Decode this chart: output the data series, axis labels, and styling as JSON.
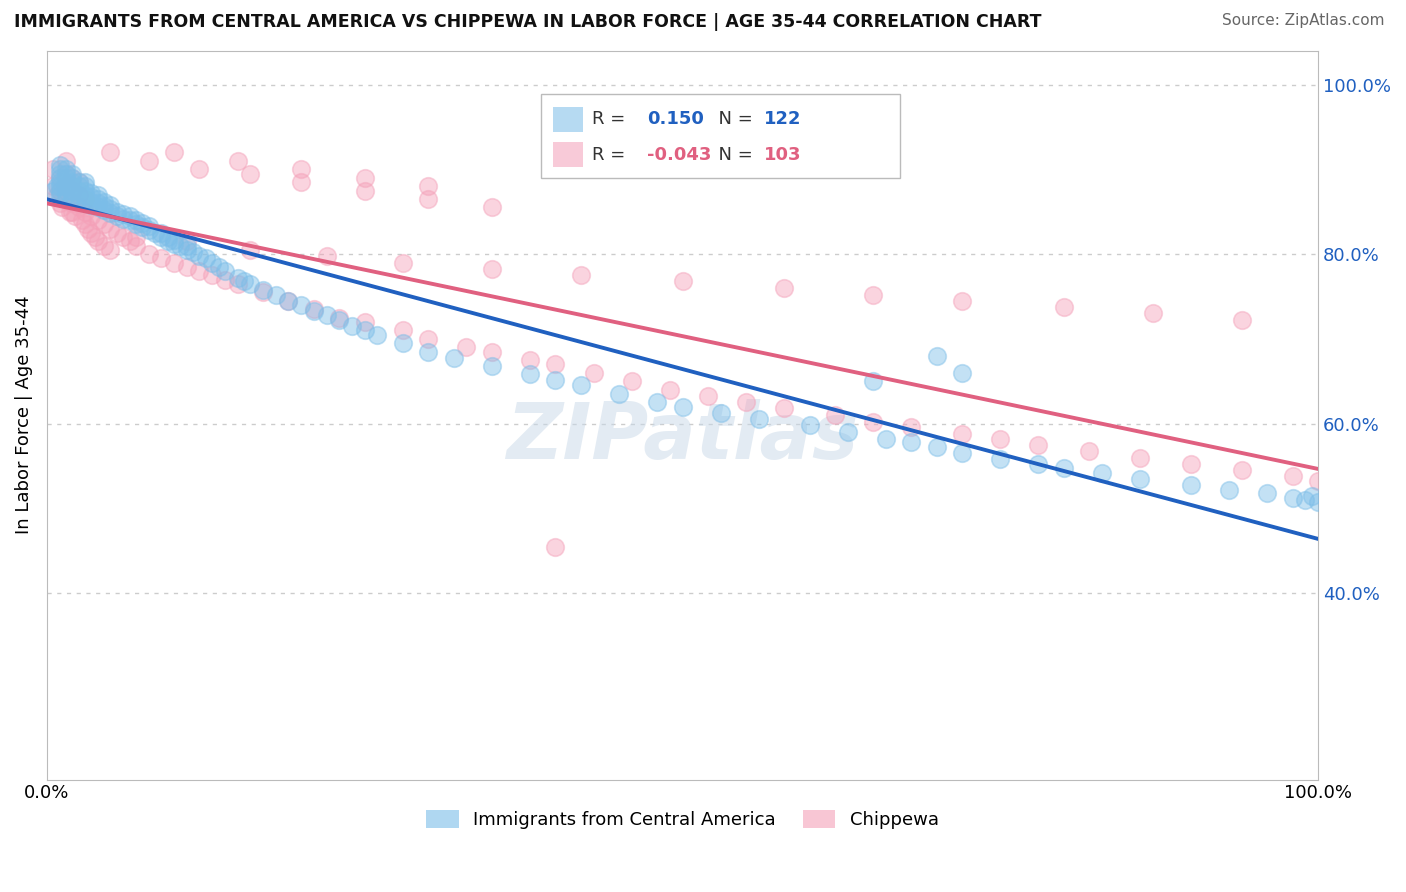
{
  "title": "IMMIGRANTS FROM CENTRAL AMERICA VS CHIPPEWA IN LABOR FORCE | AGE 35-44 CORRELATION CHART",
  "source": "Source: ZipAtlas.com",
  "ylabel": "In Labor Force | Age 35-44",
  "blue_label": "Immigrants from Central America",
  "pink_label": "Chippewa",
  "blue_R": 0.15,
  "blue_N": 122,
  "pink_R": -0.043,
  "pink_N": 103,
  "blue_color": "#7bbde8",
  "pink_color": "#f4a0b8",
  "blue_line_color": "#2060c0",
  "pink_line_color": "#e06080",
  "background_color": "#ffffff",
  "grid_color": "#cccccc",
  "xlim": [
    0.0,
    1.0
  ],
  "ylim": [
    0.18,
    1.04
  ],
  "right_yticks": [
    0.4,
    0.6,
    0.8,
    1.0
  ],
  "right_ytick_labels": [
    "40.0%",
    "60.0%",
    "80.0%",
    "100.0%"
  ],
  "blue_scatter_x": [
    0.005,
    0.008,
    0.01,
    0.01,
    0.01,
    0.01,
    0.01,
    0.01,
    0.01,
    0.01,
    0.015,
    0.015,
    0.015,
    0.015,
    0.015,
    0.015,
    0.015,
    0.02,
    0.02,
    0.02,
    0.02,
    0.02,
    0.02,
    0.02,
    0.025,
    0.025,
    0.025,
    0.025,
    0.025,
    0.03,
    0.03,
    0.03,
    0.03,
    0.03,
    0.03,
    0.035,
    0.035,
    0.035,
    0.035,
    0.04,
    0.04,
    0.04,
    0.04,
    0.045,
    0.045,
    0.045,
    0.05,
    0.05,
    0.05,
    0.055,
    0.055,
    0.06,
    0.06,
    0.065,
    0.065,
    0.07,
    0.07,
    0.075,
    0.075,
    0.08,
    0.08,
    0.085,
    0.09,
    0.09,
    0.095,
    0.095,
    0.1,
    0.1,
    0.105,
    0.11,
    0.11,
    0.115,
    0.12,
    0.125,
    0.13,
    0.135,
    0.14,
    0.15,
    0.155,
    0.16,
    0.17,
    0.18,
    0.19,
    0.2,
    0.21,
    0.22,
    0.23,
    0.24,
    0.25,
    0.26,
    0.28,
    0.3,
    0.32,
    0.35,
    0.38,
    0.4,
    0.42,
    0.45,
    0.48,
    0.5,
    0.53,
    0.56,
    0.6,
    0.63,
    0.66,
    0.68,
    0.7,
    0.72,
    0.75,
    0.78,
    0.8,
    0.83,
    0.86,
    0.9,
    0.93,
    0.96,
    0.98,
    1.0,
    0.99,
    0.995,
    0.65,
    0.7,
    0.72
  ],
  "blue_scatter_y": [
    0.875,
    0.88,
    0.87,
    0.875,
    0.88,
    0.885,
    0.89,
    0.895,
    0.9,
    0.905,
    0.87,
    0.875,
    0.88,
    0.885,
    0.89,
    0.895,
    0.9,
    0.865,
    0.87,
    0.875,
    0.88,
    0.885,
    0.89,
    0.895,
    0.865,
    0.87,
    0.875,
    0.88,
    0.885,
    0.86,
    0.865,
    0.87,
    0.875,
    0.88,
    0.885,
    0.858,
    0.862,
    0.867,
    0.872,
    0.855,
    0.86,
    0.865,
    0.87,
    0.852,
    0.857,
    0.862,
    0.848,
    0.853,
    0.858,
    0.845,
    0.85,
    0.842,
    0.847,
    0.84,
    0.845,
    0.835,
    0.84,
    0.832,
    0.837,
    0.828,
    0.833,
    0.825,
    0.82,
    0.825,
    0.815,
    0.82,
    0.812,
    0.817,
    0.81,
    0.805,
    0.81,
    0.802,
    0.798,
    0.795,
    0.79,
    0.785,
    0.78,
    0.772,
    0.768,
    0.765,
    0.758,
    0.752,
    0.745,
    0.74,
    0.733,
    0.728,
    0.722,
    0.715,
    0.71,
    0.705,
    0.695,
    0.685,
    0.678,
    0.668,
    0.658,
    0.652,
    0.645,
    0.635,
    0.625,
    0.62,
    0.612,
    0.605,
    0.598,
    0.59,
    0.582,
    0.578,
    0.572,
    0.565,
    0.558,
    0.552,
    0.548,
    0.542,
    0.535,
    0.528,
    0.522,
    0.518,
    0.512,
    0.508,
    0.51,
    0.515,
    0.65,
    0.68,
    0.66
  ],
  "pink_scatter_x": [
    0.005,
    0.005,
    0.008,
    0.01,
    0.01,
    0.01,
    0.012,
    0.015,
    0.015,
    0.015,
    0.015,
    0.018,
    0.02,
    0.02,
    0.02,
    0.02,
    0.022,
    0.025,
    0.025,
    0.025,
    0.028,
    0.03,
    0.03,
    0.03,
    0.032,
    0.035,
    0.035,
    0.038,
    0.04,
    0.04,
    0.045,
    0.045,
    0.05,
    0.05,
    0.055,
    0.06,
    0.065,
    0.07,
    0.08,
    0.09,
    0.1,
    0.11,
    0.12,
    0.13,
    0.14,
    0.15,
    0.17,
    0.19,
    0.21,
    0.23,
    0.25,
    0.28,
    0.3,
    0.33,
    0.35,
    0.38,
    0.4,
    0.43,
    0.46,
    0.49,
    0.52,
    0.55,
    0.58,
    0.62,
    0.65,
    0.68,
    0.72,
    0.75,
    0.78,
    0.82,
    0.86,
    0.9,
    0.94,
    0.98,
    1.0,
    0.1,
    0.15,
    0.2,
    0.25,
    0.3,
    0.05,
    0.08,
    0.12,
    0.16,
    0.2,
    0.25,
    0.3,
    0.35,
    0.07,
    0.11,
    0.16,
    0.22,
    0.28,
    0.35,
    0.42,
    0.5,
    0.58,
    0.65,
    0.72,
    0.8,
    0.87,
    0.94,
    0.4
  ],
  "pink_scatter_y": [
    0.88,
    0.9,
    0.87,
    0.86,
    0.875,
    0.89,
    0.855,
    0.865,
    0.88,
    0.895,
    0.91,
    0.85,
    0.86,
    0.875,
    0.89,
    0.85,
    0.845,
    0.855,
    0.87,
    0.885,
    0.84,
    0.85,
    0.865,
    0.835,
    0.83,
    0.845,
    0.825,
    0.82,
    0.84,
    0.815,
    0.835,
    0.81,
    0.83,
    0.805,
    0.825,
    0.82,
    0.815,
    0.81,
    0.8,
    0.795,
    0.79,
    0.785,
    0.78,
    0.775,
    0.77,
    0.765,
    0.755,
    0.745,
    0.735,
    0.725,
    0.72,
    0.71,
    0.7,
    0.69,
    0.685,
    0.675,
    0.67,
    0.66,
    0.65,
    0.64,
    0.632,
    0.625,
    0.618,
    0.61,
    0.602,
    0.596,
    0.588,
    0.582,
    0.575,
    0.568,
    0.56,
    0.552,
    0.545,
    0.538,
    0.532,
    0.92,
    0.91,
    0.9,
    0.89,
    0.88,
    0.92,
    0.91,
    0.9,
    0.895,
    0.885,
    0.875,
    0.865,
    0.855,
    0.82,
    0.815,
    0.805,
    0.798,
    0.79,
    0.782,
    0.775,
    0.768,
    0.76,
    0.752,
    0.745,
    0.738,
    0.73,
    0.722,
    0.455
  ]
}
